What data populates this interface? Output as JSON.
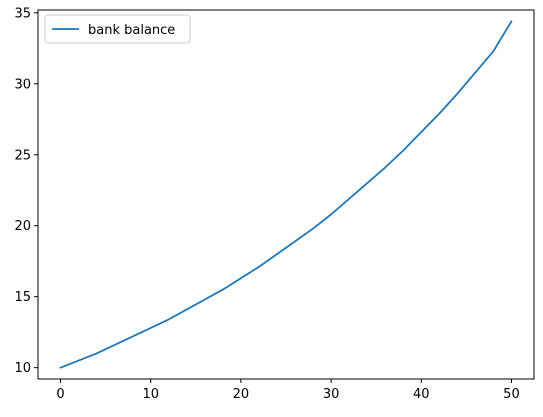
{
  "chart_data": {
    "type": "line",
    "title": "",
    "xlabel": "",
    "ylabel": "",
    "xlim": [
      -2.5,
      52.5
    ],
    "ylim": [
      9.2,
      35.2
    ],
    "xticks": [
      0,
      10,
      20,
      30,
      40,
      50
    ],
    "yticks": [
      10,
      15,
      20,
      25,
      30,
      35
    ],
    "xtick_labels": [
      "0",
      "10",
      "20",
      "30",
      "40",
      "50"
    ],
    "ytick_labels": [
      "10",
      "15",
      "20",
      "25",
      "30",
      "35"
    ],
    "grid": false,
    "legend": {
      "position": "upper-left",
      "entries": [
        "bank balance"
      ]
    },
    "series": [
      {
        "name": "bank balance",
        "color": "#1f77b4",
        "x": [
          0,
          2,
          4,
          6,
          8,
          10,
          12,
          14,
          16,
          18,
          20,
          22,
          24,
          26,
          28,
          30,
          32,
          34,
          36,
          38,
          40,
          42,
          44,
          46,
          48,
          50
        ],
        "y": [
          10.0,
          10.5,
          11.0,
          11.6,
          12.2,
          12.8,
          13.4,
          14.1,
          14.8,
          15.5,
          16.3,
          17.1,
          18.0,
          18.9,
          19.8,
          20.8,
          21.9,
          23.0,
          24.1,
          25.3,
          26.6,
          27.9,
          29.3,
          30.8,
          32.3,
          34.4
        ]
      }
    ]
  }
}
